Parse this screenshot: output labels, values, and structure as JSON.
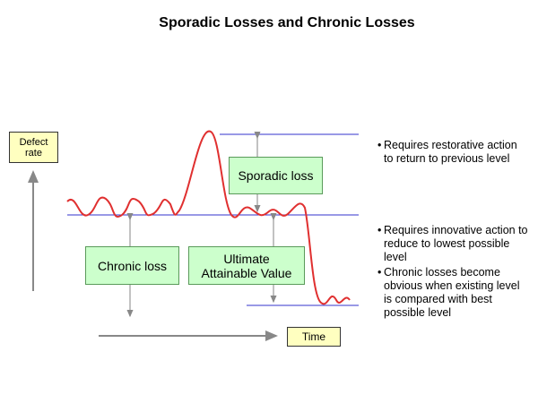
{
  "title": "Sporadic Losses and Chronic Losses",
  "axis": {
    "y_label": [
      "Defect",
      "rate"
    ],
    "x_label": "Time"
  },
  "boxes": {
    "sporadic": "Sporadic loss",
    "chronic": "Chronic loss",
    "ultimate": [
      "Ultimate",
      "Attainable Value"
    ]
  },
  "notes": {
    "sporadic": [
      "Requires restorative action to return to previous level"
    ],
    "chronic": [
      "Requires innovative action to reduce to lowest possible level",
      "Chronic losses become obvious when existing level is compared with best possible level"
    ]
  }
}
